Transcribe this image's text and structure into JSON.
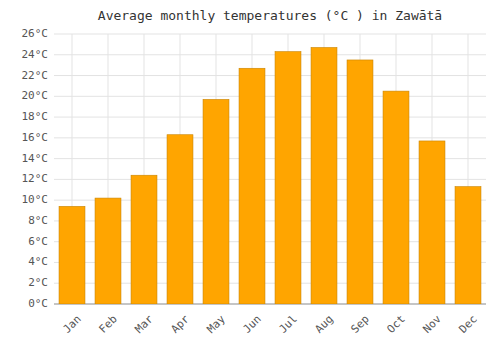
{
  "chart_data": {
    "type": "bar",
    "title": "Average monthly temperatures (°C ) in Zawātā",
    "categories": [
      "Jan",
      "Feb",
      "Mar",
      "Apr",
      "May",
      "Jun",
      "Jul",
      "Aug",
      "Sep",
      "Oct",
      "Nov",
      "Dec"
    ],
    "values": [
      9.4,
      10.2,
      12.4,
      16.3,
      19.7,
      22.7,
      24.3,
      24.7,
      23.5,
      20.5,
      15.7,
      11.3
    ],
    "color": "#FFA500",
    "ylim": [
      0,
      26
    ],
    "yticks": [
      {
        "value": 0,
        "label": "0°C"
      },
      {
        "value": 2,
        "label": "2°C"
      },
      {
        "value": 4,
        "label": "4°C"
      },
      {
        "value": 6,
        "label": "6°C"
      },
      {
        "value": 8,
        "label": "8°C"
      },
      {
        "value": 10,
        "label": "10°C"
      },
      {
        "value": 12,
        "label": "12°C"
      },
      {
        "value": 14,
        "label": "14°C"
      },
      {
        "value": 16,
        "label": "16°C"
      },
      {
        "value": 18,
        "label": "18°C"
      },
      {
        "value": 20,
        "label": "20°C"
      },
      {
        "value": 22,
        "label": "22°C"
      },
      {
        "value": 24,
        "label": "24°C"
      },
      {
        "value": 26,
        "label": "26°C"
      }
    ],
    "grid": true
  }
}
